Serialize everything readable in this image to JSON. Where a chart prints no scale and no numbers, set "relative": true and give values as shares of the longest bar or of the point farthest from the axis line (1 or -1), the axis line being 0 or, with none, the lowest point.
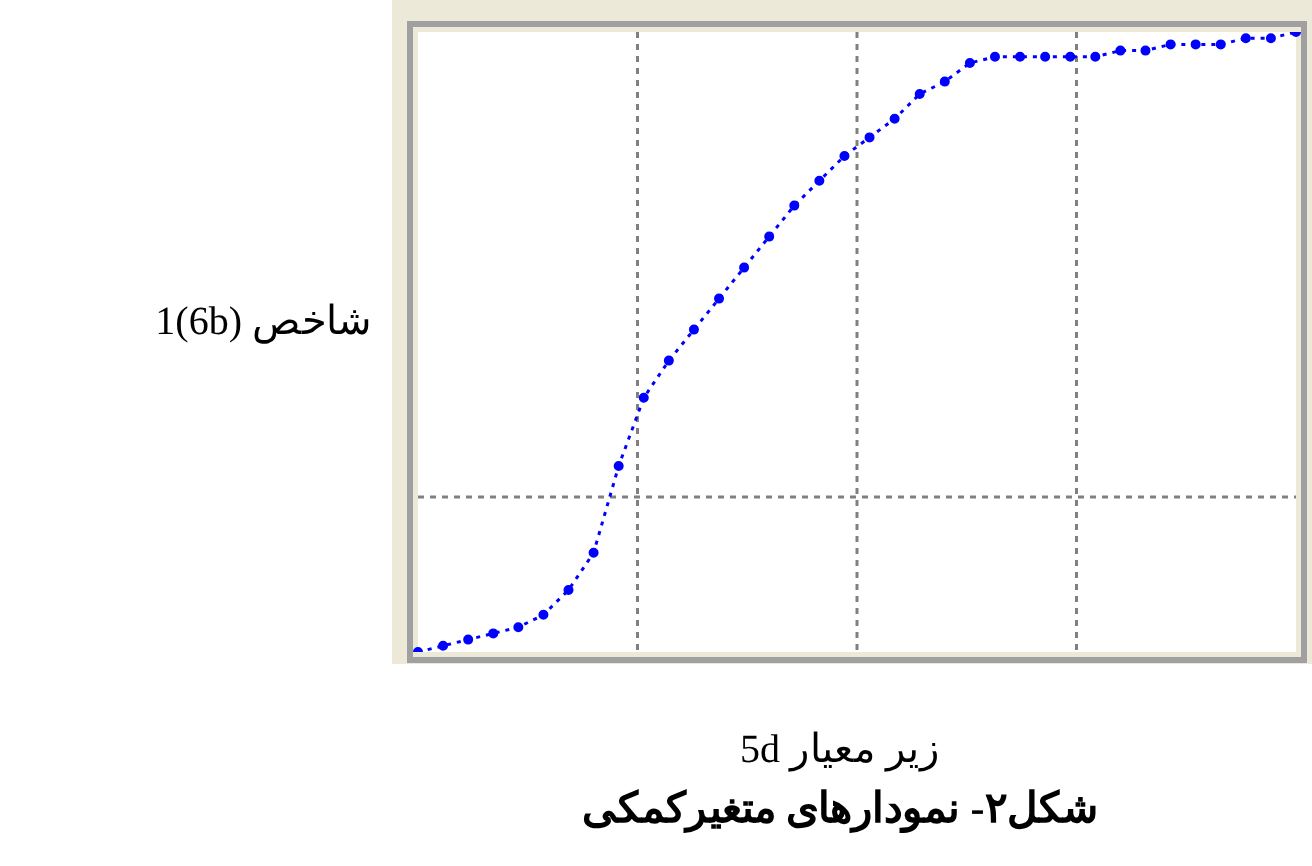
{
  "chart_data": {
    "type": "line",
    "title": "شکل۲- نمودارهای متغیرکمکی",
    "xlabel": "زیر معیار 5d",
    "ylabel": "1(6b) شاخص",
    "relative": true,
    "categories": [
      null,
      null,
      null,
      null,
      null,
      null,
      null,
      null,
      null,
      null,
      null,
      null,
      null,
      null,
      null,
      null,
      null,
      null,
      null,
      null,
      null,
      null,
      null,
      null,
      null,
      null,
      null,
      null,
      null,
      null,
      null,
      null,
      null,
      null,
      null,
      null
    ],
    "series": [
      {
        "color": "#0000ff",
        "values": [
          0,
          0.01,
          0.02,
          0.03,
          0.04,
          0.06,
          0.1,
          0.16,
          0.3,
          0.41,
          0.47,
          0.52,
          0.57,
          0.62,
          0.67,
          0.72,
          0.76,
          0.8,
          0.83,
          0.86,
          0.9,
          0.92,
          0.95,
          0.96,
          0.96,
          0.96,
          0.96,
          0.96,
          0.97,
          0.97,
          0.98,
          0.98,
          0.98,
          0.99,
          0.99,
          1
        ]
      }
    ],
    "grid": true,
    "legend": false,
    "marker": "circle",
    "line_style": "dotted"
  }
}
